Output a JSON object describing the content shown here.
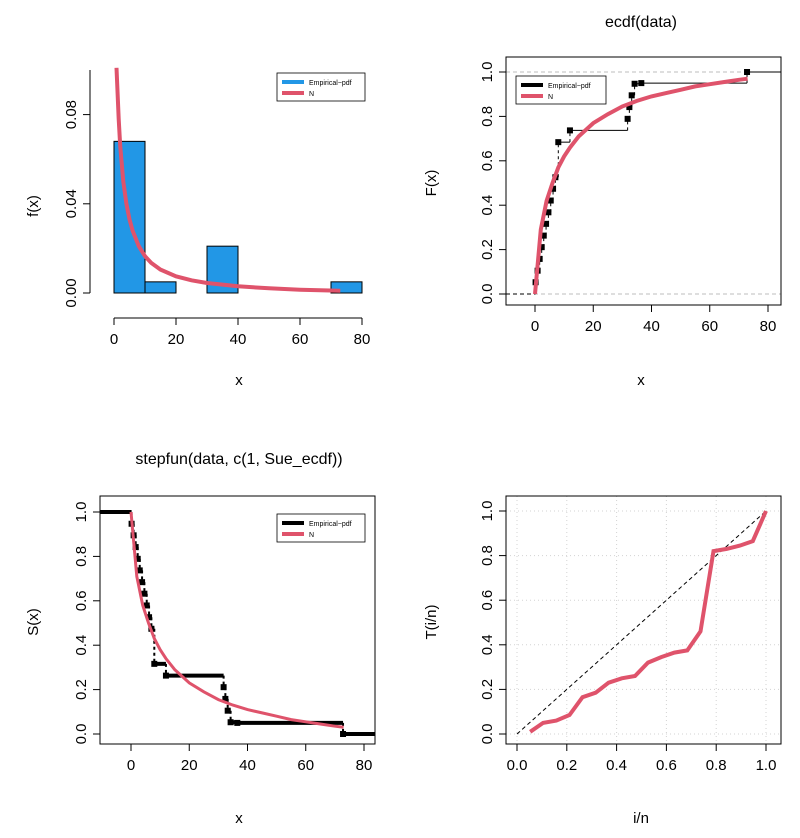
{
  "colors": {
    "hist_fill": "#2297E6",
    "curve": "#DF536B",
    "step": "#000000",
    "grey_ref": "#BEBEBE"
  },
  "chart_data": [
    {
      "type": "bar",
      "title": "",
      "xlabel": "x",
      "ylabel": "f(x)",
      "xlim": [
        0,
        80
      ],
      "ylim": [
        0,
        0.1
      ],
      "x_ticks": [
        "0",
        "20",
        "40",
        "60",
        "80"
      ],
      "y_ticks": [
        "0.00",
        "0.04",
        "0.08"
      ],
      "bins": [
        [
          0,
          10
        ],
        [
          10,
          20
        ],
        [
          20,
          30
        ],
        [
          30,
          40
        ],
        [
          40,
          50
        ],
        [
          50,
          60
        ],
        [
          60,
          70
        ],
        [
          70,
          80
        ]
      ],
      "values": [
        0.068,
        0.005,
        0,
        0.021,
        0,
        0,
        0,
        0.005
      ],
      "curve": {
        "x": [
          0.8,
          1.5,
          2,
          3,
          4,
          5,
          6,
          8,
          10,
          12,
          15,
          20,
          25,
          30,
          40,
          50,
          60,
          73
        ],
        "y": [
          0.101,
          0.078,
          0.066,
          0.05,
          0.04,
          0.033,
          0.028,
          0.021,
          0.0165,
          0.0135,
          0.0105,
          0.0075,
          0.0057,
          0.0045,
          0.003,
          0.0021,
          0.0015,
          0.001
        ]
      },
      "legend": {
        "position": "top-right",
        "entries": [
          "Empirical−pdf",
          "N"
        ]
      }
    },
    {
      "type": "line",
      "title": "ecdf(data)",
      "xlabel": "x",
      "ylabel": "F(x)",
      "xlim": [
        -8,
        82
      ],
      "ylim": [
        -0.04,
        1.04
      ],
      "x_ticks": [
        "0",
        "20",
        "40",
        "60",
        "80"
      ],
      "y_ticks": [
        "0.0",
        "0.2",
        "0.4",
        "0.6",
        "0.8",
        "1.0"
      ],
      "reference_lines_y": [
        0,
        1
      ],
      "step_x": [
        0.2,
        0.9,
        1.6,
        2.3,
        3.0,
        3.8,
        4.6,
        5.4,
        6.2,
        7.0,
        8.0,
        12.0,
        31.8,
        32.4,
        33.2,
        34.2,
        36.5,
        72.8
      ],
      "step_y": [
        0.053,
        0.105,
        0.158,
        0.211,
        0.263,
        0.316,
        0.368,
        0.421,
        0.474,
        0.526,
        0.684,
        0.737,
        0.789,
        0.842,
        0.895,
        0.947,
        0.95,
        1.0
      ],
      "curve": {
        "x": [
          0,
          2,
          4,
          6,
          8,
          10,
          12,
          15,
          20,
          25,
          30,
          35,
          40,
          45,
          50,
          55,
          60,
          65,
          70,
          73
        ],
        "y": [
          0.0,
          0.29,
          0.42,
          0.5,
          0.57,
          0.62,
          0.66,
          0.71,
          0.77,
          0.81,
          0.845,
          0.87,
          0.89,
          0.905,
          0.92,
          0.935,
          0.945,
          0.955,
          0.965,
          0.97
        ]
      },
      "legend": {
        "position": "top-left",
        "entries": [
          "Empirical−pdf",
          "N"
        ]
      }
    },
    {
      "type": "line",
      "title": "stepfun(data, c(1, Sue_ecdf))",
      "xlabel": "x",
      "ylabel": "S(x)",
      "xlim": [
        -10,
        82
      ],
      "ylim": [
        -0.04,
        1.04
      ],
      "x_ticks": [
        "0",
        "20",
        "40",
        "60",
        "80"
      ],
      "y_ticks": [
        "0.0",
        "0.2",
        "0.4",
        "0.6",
        "0.8",
        "1.0"
      ],
      "step_x": [
        0.2,
        0.9,
        1.6,
        2.3,
        3.0,
        3.8,
        4.6,
        5.4,
        6.2,
        7.0,
        8.0,
        12.0,
        31.8,
        32.4,
        33.2,
        34.2,
        36.5,
        72.8
      ],
      "step_y": [
        0.947,
        0.895,
        0.842,
        0.789,
        0.737,
        0.684,
        0.632,
        0.579,
        0.526,
        0.474,
        0.316,
        0.263,
        0.211,
        0.158,
        0.105,
        0.053,
        0.05,
        0.0
      ],
      "curve": {
        "x": [
          0,
          2,
          4,
          6,
          8,
          10,
          12,
          15,
          20,
          25,
          30,
          35,
          40,
          45,
          50,
          55,
          60,
          65,
          70,
          73
        ],
        "y": [
          1.0,
          0.71,
          0.58,
          0.5,
          0.43,
          0.38,
          0.34,
          0.29,
          0.23,
          0.19,
          0.155,
          0.13,
          0.11,
          0.095,
          0.08,
          0.065,
          0.055,
          0.045,
          0.035,
          0.03
        ]
      },
      "legend": {
        "position": "top-right",
        "entries": [
          "Empirical−pdf",
          "N"
        ]
      }
    },
    {
      "type": "line",
      "title": "",
      "xlabel": "i/n",
      "ylabel": "T(i/n)",
      "xlim": [
        -0.04,
        1.04
      ],
      "ylim": [
        -0.04,
        1.04
      ],
      "x_ticks": [
        "0.0",
        "0.2",
        "0.4",
        "0.6",
        "0.8",
        "1.0"
      ],
      "y_ticks": [
        "0.0",
        "0.2",
        "0.4",
        "0.6",
        "0.8",
        "1.0"
      ],
      "grid": true,
      "diagonal": true,
      "x": [
        0.053,
        0.105,
        0.158,
        0.211,
        0.263,
        0.316,
        0.368,
        0.421,
        0.474,
        0.526,
        0.579,
        0.632,
        0.684,
        0.737,
        0.789,
        0.842,
        0.895,
        0.947,
        1.0
      ],
      "y": [
        0.01,
        0.05,
        0.06,
        0.085,
        0.165,
        0.185,
        0.23,
        0.25,
        0.26,
        0.32,
        0.345,
        0.365,
        0.375,
        0.46,
        0.82,
        0.83,
        0.845,
        0.865,
        1.0
      ]
    }
  ]
}
